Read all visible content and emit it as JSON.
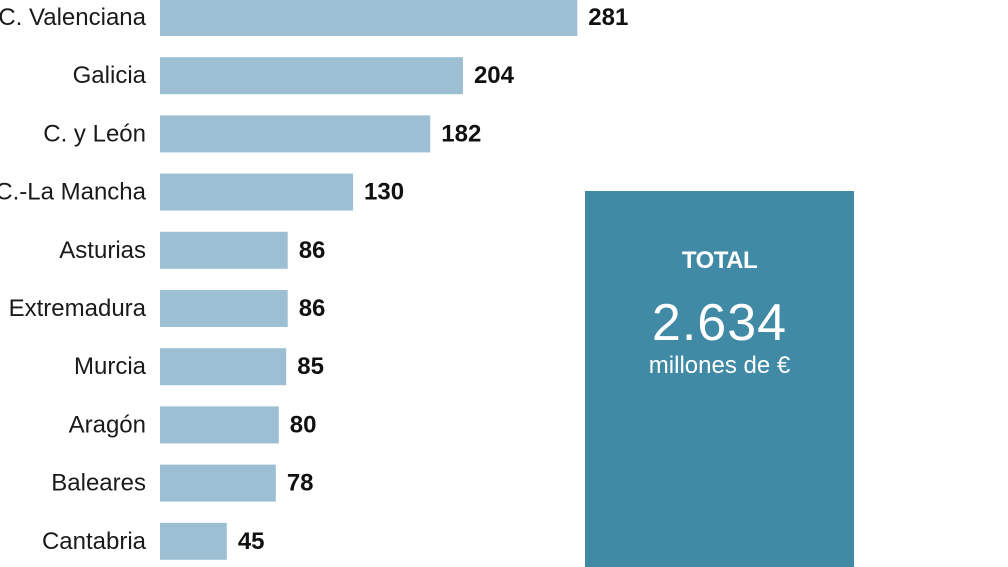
{
  "chart_data": {
    "type": "bar",
    "orientation": "horizontal",
    "categories": [
      "C. Valenciana",
      "Galicia",
      "C. y León",
      "C.-La Mancha",
      "Asturias",
      "Extremadura",
      "Murcia",
      "Aragón",
      "Baleares",
      "Cantabria"
    ],
    "values": [
      281,
      204,
      182,
      130,
      86,
      86,
      85,
      80,
      78,
      45
    ],
    "value_labels": [
      "281",
      "204",
      "182",
      "130",
      "86",
      "86",
      "85",
      "80",
      "78",
      "45"
    ],
    "bar_color": "#9dbfd4",
    "title": "",
    "xlabel": "",
    "ylabel": "",
    "grid": false
  },
  "total": {
    "title": "TOTAL",
    "value": "2.634",
    "unit": "millones de €",
    "background_color": "#418aa6"
  }
}
